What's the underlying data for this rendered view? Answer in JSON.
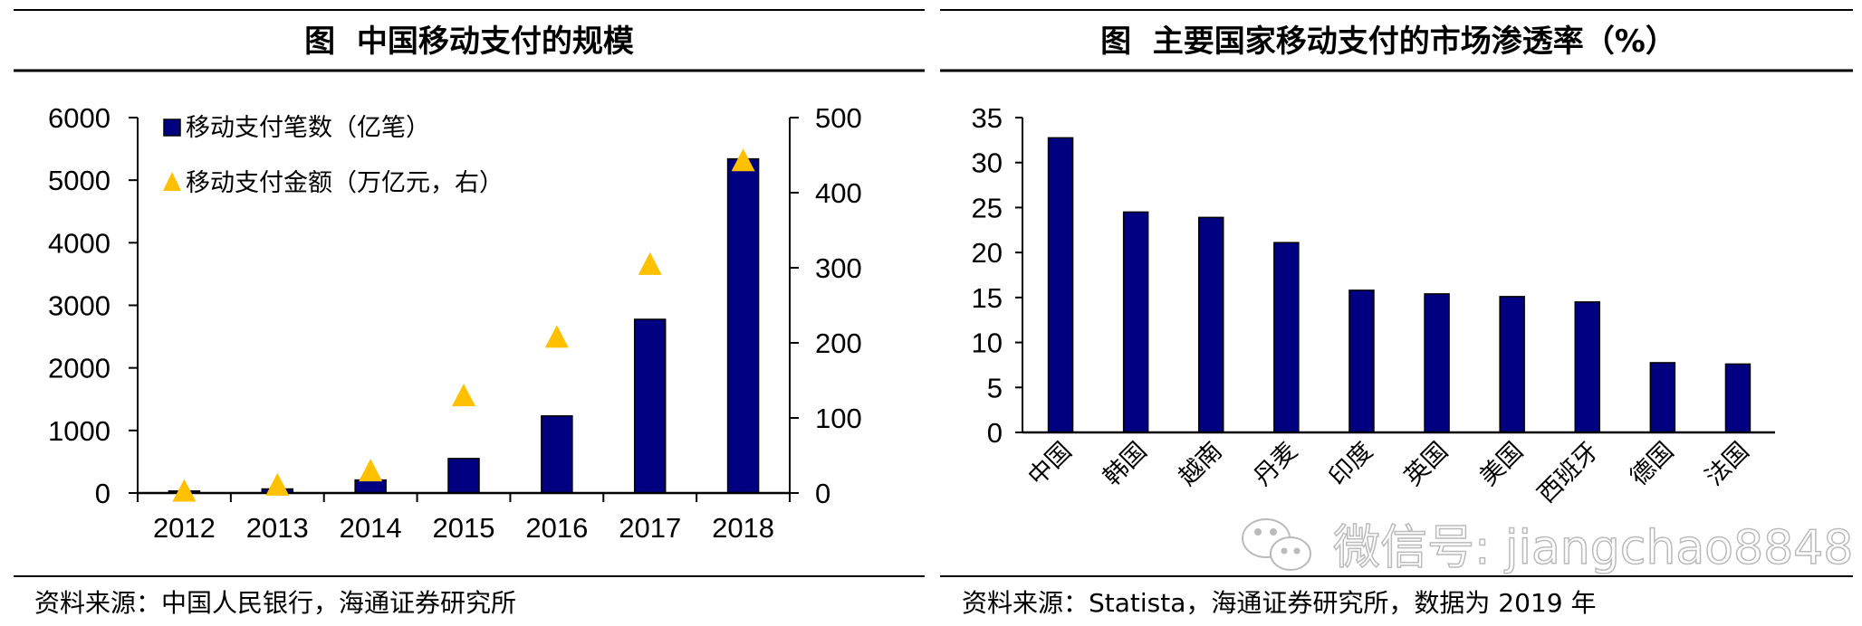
{
  "colors": {
    "bar": "#000080",
    "marker": "#FFC000",
    "axis": "#000000"
  },
  "chart_data": [
    {
      "type": "bar+scatter",
      "title": "图  中国移动支付的规模",
      "categories": [
        "2012",
        "2013",
        "2014",
        "2015",
        "2016",
        "2017",
        "2018"
      ],
      "series": [
        {
          "name": "移动支付笔数（亿笔）",
          "type": "bar",
          "axis": "left",
          "values": [
            32,
            65,
            208,
            551,
            1232,
            2776,
            5340
          ]
        },
        {
          "name": "移动支付金额（万亿元，右）",
          "type": "triangle-marker",
          "axis": "right",
          "values": [
            3,
            11,
            30,
            130,
            208,
            305,
            443
          ]
        }
      ],
      "ylim_left": [
        0,
        6000
      ],
      "yticks_left": [
        "0",
        "1000",
        "2000",
        "3000",
        "4000",
        "5000",
        "6000"
      ],
      "ylim_right": [
        0,
        500
      ],
      "yticks_right": [
        "0",
        "100",
        "200",
        "300",
        "400",
        "500"
      ],
      "legend_placement": "top-left",
      "grid": false,
      "source": "资料来源：中国人民银行，海通证券研究所"
    },
    {
      "type": "bar",
      "title": "图  主要国家移动支付的市场渗透率（%）",
      "categories": [
        "中国",
        "韩国",
        "越南",
        "丹麦",
        "印度",
        "英国",
        "美国",
        "西班牙",
        "德国",
        "法国"
      ],
      "values": [
        32.75,
        24.5,
        23.9,
        21.1,
        15.8,
        15.4,
        15.1,
        14.5,
        7.75,
        7.6
      ],
      "ylim": [
        0,
        35
      ],
      "yticks": [
        "0",
        "5",
        "10",
        "15",
        "20",
        "25",
        "30",
        "35"
      ],
      "grid": false,
      "source": "资料来源：Statista，海通证券研究所，数据为 2019 年"
    }
  ],
  "watermark": {
    "text": "微信号: jiangchao8848",
    "icon": "wechat-icon"
  }
}
